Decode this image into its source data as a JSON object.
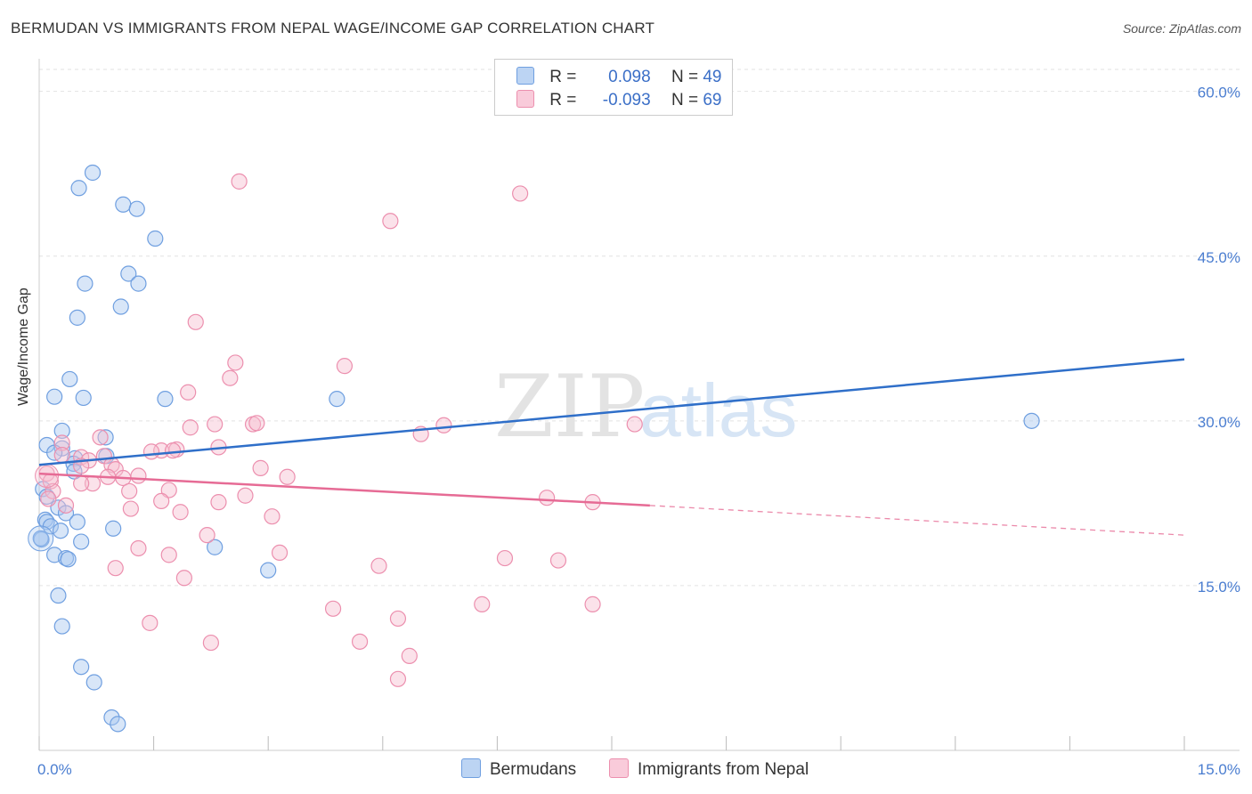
{
  "title": "BERMUDAN VS IMMIGRANTS FROM NEPAL WAGE/INCOME GAP CORRELATION CHART",
  "source": "Source: ZipAtlas.com",
  "watermark": {
    "zip": "ZIP",
    "atlas": "atlas"
  },
  "legend": {
    "r_label": "R =",
    "n_label": "N =",
    "items": [
      {
        "r": "0.098",
        "n": "49",
        "color": "#a9c8f0",
        "border": "#6f9fe0"
      },
      {
        "r": "-0.093",
        "n": "69",
        "color": "#f7bfd1",
        "border": "#ec8fae"
      }
    ]
  },
  "chart_data": {
    "type": "scatter",
    "title": "BERMUDAN VS IMMIGRANTS FROM NEPAL WAGE/INCOME GAP CORRELATION CHART",
    "xlabel": "",
    "ylabel": "Wage/Income Gap",
    "xlim": [
      0,
      15
    ],
    "ylim": [
      0,
      62
    ],
    "x_tick_labels": [
      "0.0%",
      "15.0%"
    ],
    "y_ticks": [
      15,
      30,
      45,
      60
    ],
    "y_tick_labels": [
      "15.0%",
      "30.0%",
      "45.0%",
      "60.0%"
    ],
    "grid": true,
    "legend_position": "bottom-center",
    "series": [
      {
        "name": "Bermudans",
        "color": "#6f9fe0",
        "fill": "#a9c8f0",
        "line_color": "#2f6fc9",
        "trend": {
          "x": [
            0,
            15
          ],
          "y": [
            26.0,
            35.6
          ]
        },
        "points": [
          [
            0.7,
            52.6
          ],
          [
            0.52,
            51.2
          ],
          [
            1.1,
            49.7
          ],
          [
            1.28,
            49.3
          ],
          [
            1.52,
            46.6
          ],
          [
            1.17,
            43.4
          ],
          [
            0.6,
            42.5
          ],
          [
            1.3,
            42.5
          ],
          [
            1.07,
            40.4
          ],
          [
            0.5,
            39.4
          ],
          [
            0.4,
            33.8
          ],
          [
            0.2,
            32.2
          ],
          [
            0.58,
            32.1
          ],
          [
            1.65,
            32.0
          ],
          [
            3.9,
            32.0
          ],
          [
            0.3,
            29.1
          ],
          [
            0.87,
            28.5
          ],
          [
            0.1,
            27.8
          ],
          [
            0.3,
            27.5
          ],
          [
            0.2,
            27.1
          ],
          [
            0.88,
            26.8
          ],
          [
            0.47,
            26.6
          ],
          [
            0.45,
            26.1
          ],
          [
            0.46,
            25.4
          ],
          [
            0.05,
            23.8
          ],
          [
            0.1,
            23.1
          ],
          [
            0.25,
            22.1
          ],
          [
            0.35,
            21.6
          ],
          [
            0.08,
            21.0
          ],
          [
            0.1,
            20.8
          ],
          [
            0.5,
            20.8
          ],
          [
            0.15,
            20.4
          ],
          [
            0.28,
            20.0
          ],
          [
            0.97,
            20.2
          ],
          [
            0.03,
            19.2
          ],
          [
            0.55,
            19.0
          ],
          [
            2.3,
            18.5
          ],
          [
            0.2,
            17.8
          ],
          [
            0.35,
            17.5
          ],
          [
            0.38,
            17.4
          ],
          [
            3.0,
            16.4
          ],
          [
            0.25,
            14.1
          ],
          [
            0.3,
            11.3
          ],
          [
            0.55,
            7.6
          ],
          [
            0.72,
            6.2
          ],
          [
            0.95,
            3.0
          ],
          [
            1.03,
            2.4
          ],
          [
            0.02,
            19.3
          ],
          [
            13.0,
            30.0
          ]
        ]
      },
      {
        "name": "Immigrants from Nepal",
        "color": "#ec8fae",
        "fill": "#f7bfd1",
        "line_color": "#e66b95",
        "trend": {
          "x": [
            0,
            8.0
          ],
          "y": [
            25.2,
            22.3
          ]
        },
        "trend_dashed": {
          "x": [
            8.0,
            15
          ],
          "y": [
            22.3,
            19.6
          ]
        },
        "points": [
          [
            2.62,
            51.8
          ],
          [
            6.3,
            50.7
          ],
          [
            4.6,
            48.2
          ],
          [
            2.05,
            39.0
          ],
          [
            2.57,
            35.3
          ],
          [
            4.0,
            35.0
          ],
          [
            2.5,
            33.9
          ],
          [
            1.95,
            32.6
          ],
          [
            2.3,
            29.7
          ],
          [
            2.8,
            29.7
          ],
          [
            1.98,
            29.4
          ],
          [
            5.3,
            29.6
          ],
          [
            7.8,
            29.7
          ],
          [
            5.0,
            28.8
          ],
          [
            0.3,
            28.0
          ],
          [
            0.8,
            28.5
          ],
          [
            2.35,
            27.6
          ],
          [
            1.8,
            27.4
          ],
          [
            1.6,
            27.3
          ],
          [
            1.47,
            27.2
          ],
          [
            0.3,
            26.9
          ],
          [
            0.55,
            26.7
          ],
          [
            0.65,
            26.4
          ],
          [
            0.85,
            26.8
          ],
          [
            0.95,
            26.0
          ],
          [
            0.55,
            25.9
          ],
          [
            1.0,
            25.6
          ],
          [
            2.9,
            25.7
          ],
          [
            0.1,
            25.2
          ],
          [
            0.9,
            24.9
          ],
          [
            1.1,
            24.8
          ],
          [
            1.3,
            25.0
          ],
          [
            3.25,
            24.9
          ],
          [
            0.7,
            24.3
          ],
          [
            0.55,
            24.3
          ],
          [
            0.15,
            24.5
          ],
          [
            0.18,
            23.6
          ],
          [
            1.18,
            23.6
          ],
          [
            1.7,
            23.7
          ],
          [
            0.12,
            22.9
          ],
          [
            2.7,
            23.2
          ],
          [
            1.6,
            22.7
          ],
          [
            2.35,
            22.6
          ],
          [
            6.65,
            23.0
          ],
          [
            7.25,
            22.6
          ],
          [
            1.2,
            22.0
          ],
          [
            1.85,
            21.7
          ],
          [
            3.05,
            21.3
          ],
          [
            2.2,
            19.6
          ],
          [
            1.3,
            18.4
          ],
          [
            3.15,
            18.0
          ],
          [
            1.7,
            17.8
          ],
          [
            6.1,
            17.5
          ],
          [
            6.8,
            17.3
          ],
          [
            1.0,
            16.6
          ],
          [
            4.45,
            16.8
          ],
          [
            1.9,
            15.7
          ],
          [
            5.8,
            13.3
          ],
          [
            7.25,
            13.3
          ],
          [
            3.85,
            12.9
          ],
          [
            4.7,
            12.0
          ],
          [
            1.45,
            11.6
          ],
          [
            2.25,
            9.8
          ],
          [
            4.2,
            9.9
          ],
          [
            4.85,
            8.6
          ],
          [
            4.7,
            6.5
          ],
          [
            1.75,
            27.3
          ],
          [
            0.35,
            22.3
          ],
          [
            2.85,
            29.8
          ]
        ]
      }
    ]
  }
}
